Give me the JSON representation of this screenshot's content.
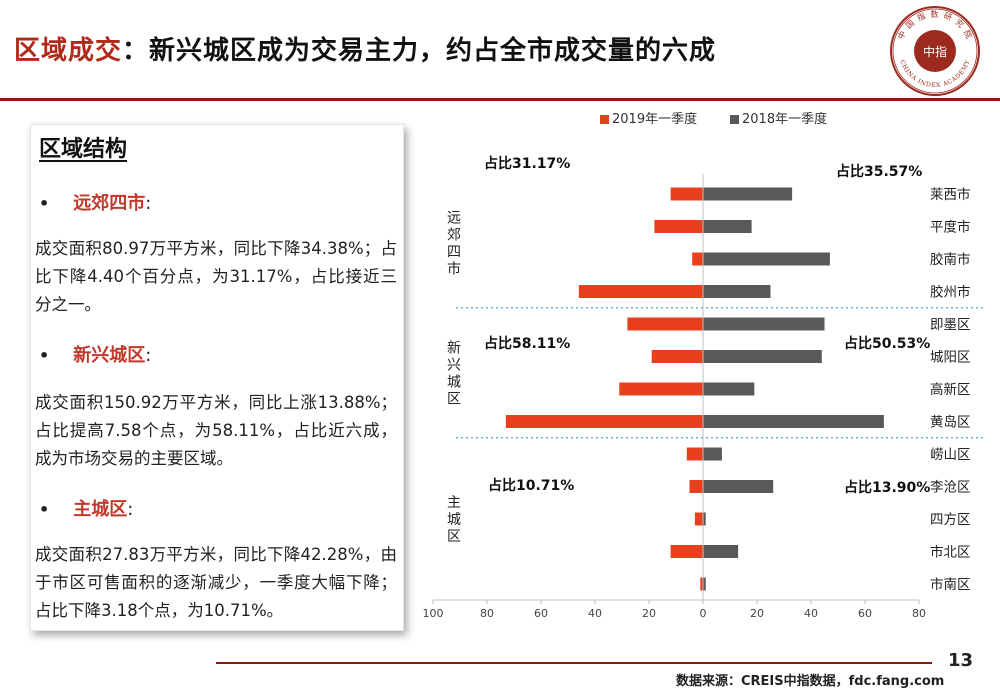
{
  "header": {
    "title_prefix": "区域成交",
    "title_colon": "：",
    "title_rest": "新兴城区成为交易主力，约占全市成交量的六成",
    "logo_text_top": "中 国 指 数 研 究 院",
    "logo_text_bottom": "CHINA INDEX ACADEMY",
    "logo_center": "中指"
  },
  "panel": {
    "heading": "区域结构",
    "sections": [
      {
        "title": "远郊四市",
        "colon": ":",
        "body": "成交面积80.97万平方米，同比下降34.38%；占比下降4.40个百分点，为31.17%，占比接近三分之一。"
      },
      {
        "title": "新兴城区",
        "colon": ":",
        "body": "成交面积150.92万平方米，同比上涨13.88%；占比提高7.58个点，为58.11%，占比近六成，成为市场交易的主要区域。"
      },
      {
        "title": "主城区",
        "colon": ":",
        "body": "成交面积27.83万平方米，同比下降42.28%，由于市区可售面积的逐渐减少，一季度大幅下降；占比下降3.18个点，为10.71%。"
      }
    ]
  },
  "chart_data": {
    "type": "bar",
    "orientation": "horizontal-butterfly",
    "legend_position": "top",
    "categories": [
      "莱西市",
      "平度市",
      "胶南市",
      "胶州市",
      "即墨区",
      "城阳区",
      "高新区",
      "黄岛区",
      "崂山区",
      "李沧区",
      "四方区",
      "市北区",
      "市南区"
    ],
    "series": [
      {
        "name": "2019年一季度",
        "color": "#e8401c",
        "side": "left",
        "values": [
          12,
          18,
          4,
          46,
          28,
          19,
          31,
          73,
          6,
          5,
          3,
          12,
          1
        ]
      },
      {
        "name": "2018年一季度",
        "color": "#595959",
        "side": "right",
        "values": [
          33,
          18,
          47,
          25,
          45,
          44,
          19,
          67,
          7,
          26,
          1,
          13,
          1
        ]
      }
    ],
    "x_ticks": [
      "100",
      "80",
      "60",
      "40",
      "20",
      "0",
      "20",
      "40",
      "60",
      "80"
    ],
    "xlim": [
      -100,
      80
    ],
    "groups": [
      {
        "name": "远郊四市",
        "from": 0,
        "to": 3,
        "share_2019": "占比31.17%",
        "share_2018": "占比35.57%"
      },
      {
        "name": "新兴城区",
        "from": 4,
        "to": 7,
        "share_2019": "占比58.11%",
        "share_2018": "占比50.53%"
      },
      {
        "name": "主城区",
        "from": 8,
        "to": 12,
        "share_2019": "占比10.71%",
        "share_2018": "占比13.90%"
      }
    ]
  },
  "footer": {
    "page_number": "13",
    "source": "数据来源：CREIS中指数据，fdc.fang.com"
  }
}
